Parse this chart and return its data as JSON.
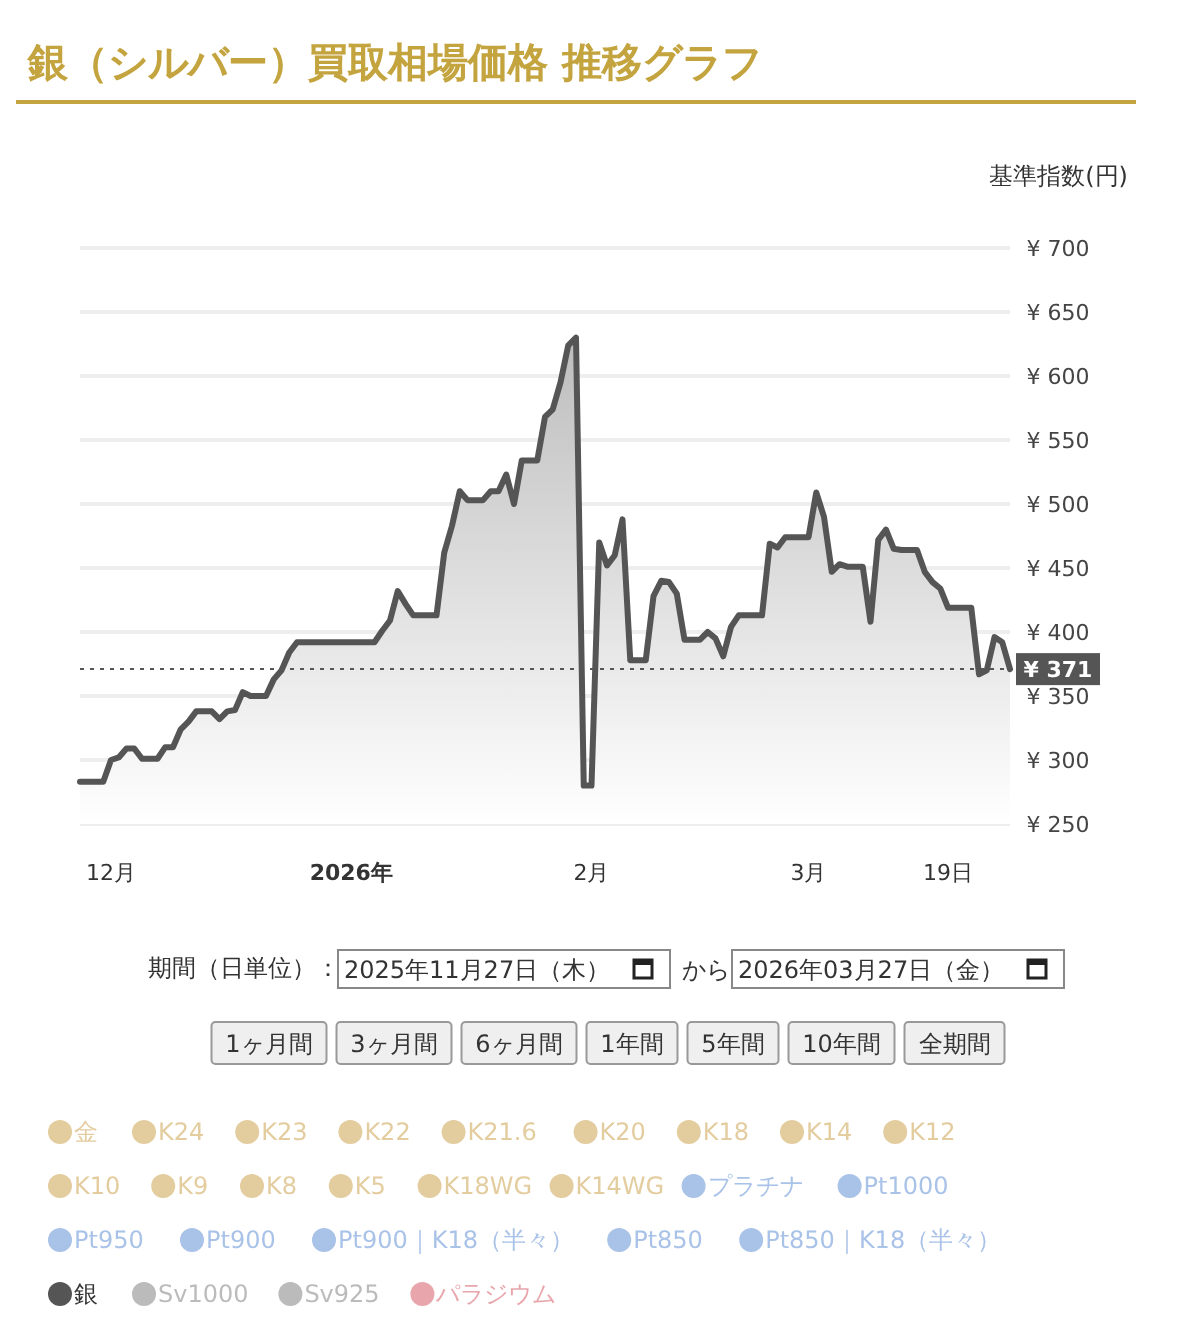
{
  "chart_data": {
    "type": "area",
    "title": "銀（シルバー）買取相場価格 推移グラフ",
    "ylabel": "基準指数(円)",
    "xlim": [
      "2025-11-27",
      "2026-03-27"
    ],
    "xticks": [
      {
        "value": "2025-12-01",
        "label": "12月"
      },
      {
        "value": "2026-01-01",
        "label": "2026年"
      },
      {
        "value": "2026-02-01",
        "label": "2月"
      },
      {
        "value": "2026-03-01",
        "label": "3月"
      },
      {
        "value": "2026-03-19",
        "label": "19日"
      }
    ],
    "ylim": [
      250,
      700
    ],
    "yticks": [
      {
        "value": 250,
        "label": "¥ 250"
      },
      {
        "value": 300,
        "label": "¥ 300"
      },
      {
        "value": 350,
        "label": "¥ 350"
      },
      {
        "value": 400,
        "label": "¥ 400"
      },
      {
        "value": 450,
        "label": "¥ 450"
      },
      {
        "value": 500,
        "label": "¥ 500"
      },
      {
        "value": 550,
        "label": "¥ 550"
      },
      {
        "value": 600,
        "label": "¥ 600"
      },
      {
        "value": 650,
        "label": "¥ 650"
      },
      {
        "value": 700,
        "label": "¥ 700"
      }
    ],
    "grid": "y",
    "legend": "bottom",
    "marker": "none",
    "line_style": "solid",
    "ref_lines": [
      {
        "axis": "y",
        "value": 371,
        "label": "¥ 371",
        "color": "#555555",
        "line_style": "dotted"
      }
    ],
    "annotations": [
      "期間（日単位）：",
      "2025年11月27日（木）",
      "から",
      "2026年03月27日（金）",
      "1ヶ月間",
      "3ヶ月間",
      "6ヶ月間",
      "1年間",
      "5年間",
      "10年間",
      "全期間"
    ],
    "series": [
      {
        "name": "金",
        "color": "#e3cc9e"
      },
      {
        "name": "K24",
        "color": "#e3cc9e"
      },
      {
        "name": "K23",
        "color": "#e3cc9e"
      },
      {
        "name": "K22",
        "color": "#e3cc9e"
      },
      {
        "name": "K21.6",
        "color": "#e3cc9e"
      },
      {
        "name": "K20",
        "color": "#e3cc9e"
      },
      {
        "name": "K18",
        "color": "#e3cc9e"
      },
      {
        "name": "K14",
        "color": "#e3cc9e"
      },
      {
        "name": "K12",
        "color": "#e3cc9e"
      },
      {
        "name": "K10",
        "color": "#e3cc9e"
      },
      {
        "name": "K9",
        "color": "#e3cc9e"
      },
      {
        "name": "K8",
        "color": "#e3cc9e"
      },
      {
        "name": "K5",
        "color": "#e3cc9e"
      },
      {
        "name": "K18WG",
        "color": "#e3cc9e"
      },
      {
        "name": "K14WG",
        "color": "#e3cc9e"
      },
      {
        "name": "プラチナ",
        "color": "#a9c2e8"
      },
      {
        "name": "Pt1000",
        "color": "#a9c2e8"
      },
      {
        "name": "Pt950",
        "color": "#a9c2e8"
      },
      {
        "name": "Pt900",
        "color": "#a9c2e8"
      },
      {
        "name": "Pt900｜K18（半々）",
        "color": "#a9c2e8"
      },
      {
        "name": "Pt850",
        "color": "#a9c2e8"
      },
      {
        "name": "Pt850｜K18（半々）",
        "color": "#a9c2e8"
      },
      {
        "name": "銀",
        "color": "#555555",
        "x": [
          "2025-11-27",
          "2025-11-30",
          "2025-12-01",
          "2025-12-02",
          "2025-12-03",
          "2025-12-04",
          "2025-12-05",
          "2025-12-07",
          "2025-12-08",
          "2025-12-09",
          "2025-12-10",
          "2025-12-11",
          "2025-12-12",
          "2025-12-14",
          "2025-12-15",
          "2025-12-16",
          "2025-12-17",
          "2025-12-18",
          "2025-12-19",
          "2025-12-21",
          "2025-12-22",
          "2025-12-23",
          "2025-12-24",
          "2025-12-25",
          "2026-01-04",
          "2026-01-05",
          "2026-01-06",
          "2026-01-07",
          "2026-01-08",
          "2026-01-09",
          "2026-01-12",
          "2026-01-13",
          "2026-01-14",
          "2026-01-15",
          "2026-01-16",
          "2026-01-18",
          "2026-01-19",
          "2026-01-20",
          "2026-01-21",
          "2026-01-22",
          "2026-01-23",
          "2026-01-25",
          "2026-01-26",
          "2026-01-27",
          "2026-01-28",
          "2026-01-29",
          "2026-01-30",
          "2026-01-31",
          "2026-02-01",
          "2026-02-02",
          "2026-02-03",
          "2026-02-04",
          "2026-02-05",
          "2026-02-06",
          "2026-02-08",
          "2026-02-09",
          "2026-02-10",
          "2026-02-11",
          "2026-02-12",
          "2026-02-13",
          "2026-02-15",
          "2026-02-16",
          "2026-02-17",
          "2026-02-18",
          "2026-02-19",
          "2026-02-20",
          "2026-02-23",
          "2026-02-24",
          "2026-02-25",
          "2026-02-26",
          "2026-02-27",
          "2026-03-01",
          "2026-03-02",
          "2026-03-03",
          "2026-03-04",
          "2026-03-05",
          "2026-03-06",
          "2026-03-08",
          "2026-03-09",
          "2026-03-10",
          "2026-03-11",
          "2026-03-12",
          "2026-03-13",
          "2026-03-15",
          "2026-03-16",
          "2026-03-17",
          "2026-03-18",
          "2026-03-19",
          "2026-03-22",
          "2026-03-23",
          "2026-03-24",
          "2026-03-25",
          "2026-03-26",
          "2026-03-27"
        ],
        "values": [
          283,
          283,
          300,
          302,
          309,
          309,
          301,
          301,
          310,
          310,
          324,
          330,
          338,
          338,
          332,
          338,
          339,
          353,
          350,
          350,
          363,
          370,
          384,
          392,
          392,
          401,
          409,
          432,
          422,
          413,
          413,
          462,
          483,
          510,
          503,
          503,
          510,
          510,
          523,
          500,
          534,
          534,
          568,
          574,
          595,
          624,
          630,
          280,
          280,
          470,
          452,
          460,
          488,
          378,
          378,
          428,
          440,
          439,
          430,
          394,
          394,
          400,
          395,
          381,
          404,
          413,
          413,
          469,
          466,
          474,
          474,
          474,
          509,
          490,
          447,
          453,
          451,
          451,
          408,
          472,
          480,
          465,
          464,
          464,
          447,
          439,
          434,
          419,
          419,
          367,
          370,
          396,
          392,
          371
        ]
      },
      {
        "name": "Sv1000",
        "color": "#bbbbbb"
      },
      {
        "name": "Sv925",
        "color": "#bbbbbb"
      },
      {
        "name": "パラジウム",
        "color": "#e8a6ac"
      }
    ]
  }
}
